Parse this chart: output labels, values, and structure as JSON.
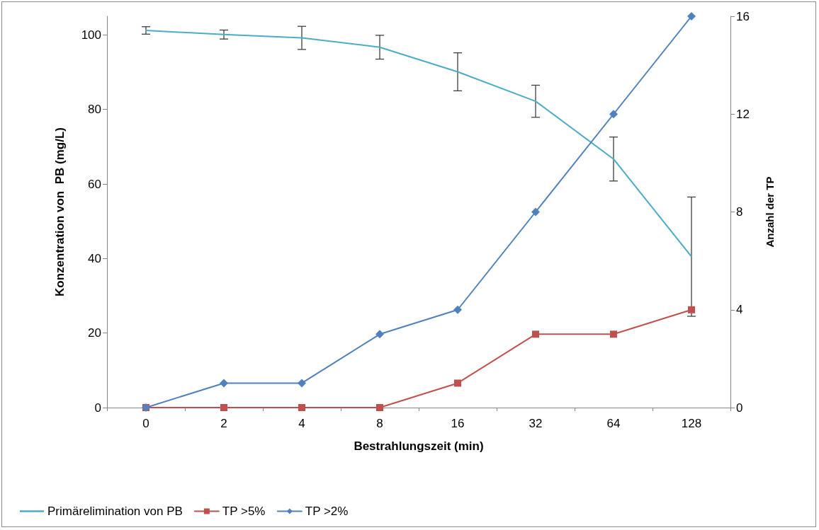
{
  "chart_data": {
    "type": "line",
    "xlabel": "Bestrahlungszeit (min)",
    "ylabel": "Konzentration von  PB (mg/L)",
    "y2label": "Anzahl der TP",
    "categories": [
      "0",
      "2",
      "4",
      "8",
      "16",
      "32",
      "64",
      "128"
    ],
    "series": [
      {
        "name": "Primärelimination von PB",
        "color": "#4bacc6",
        "marker": "none",
        "values": [
          101.2,
          100.1,
          99.2,
          96.7,
          90.1,
          82.2,
          66.7,
          40.5
        ],
        "errors": [
          1,
          1.2,
          3.1,
          3.2,
          5.1,
          4.3,
          5.9,
          16
        ]
      },
      {
        "name": "TP >5%",
        "color": "#c0504d",
        "marker": "square",
        "axis": "y2",
        "values": [
          0,
          0,
          0,
          0,
          1,
          3,
          3,
          4
        ]
      },
      {
        "name": "TP >2%",
        "color": "#4f81bd",
        "marker": "diamond",
        "axis": "y2",
        "values": [
          0,
          1,
          1,
          3,
          4,
          8,
          12,
          16
        ]
      }
    ],
    "ylim": [
      0,
      105
    ],
    "yticks": [
      0,
      20,
      40,
      60,
      80,
      100
    ],
    "y2lim": [
      0,
      16
    ],
    "y2ticks": [
      0,
      4,
      8,
      12,
      16
    ],
    "grid": false,
    "legend": "bottom left",
    "line_style": "solid"
  }
}
